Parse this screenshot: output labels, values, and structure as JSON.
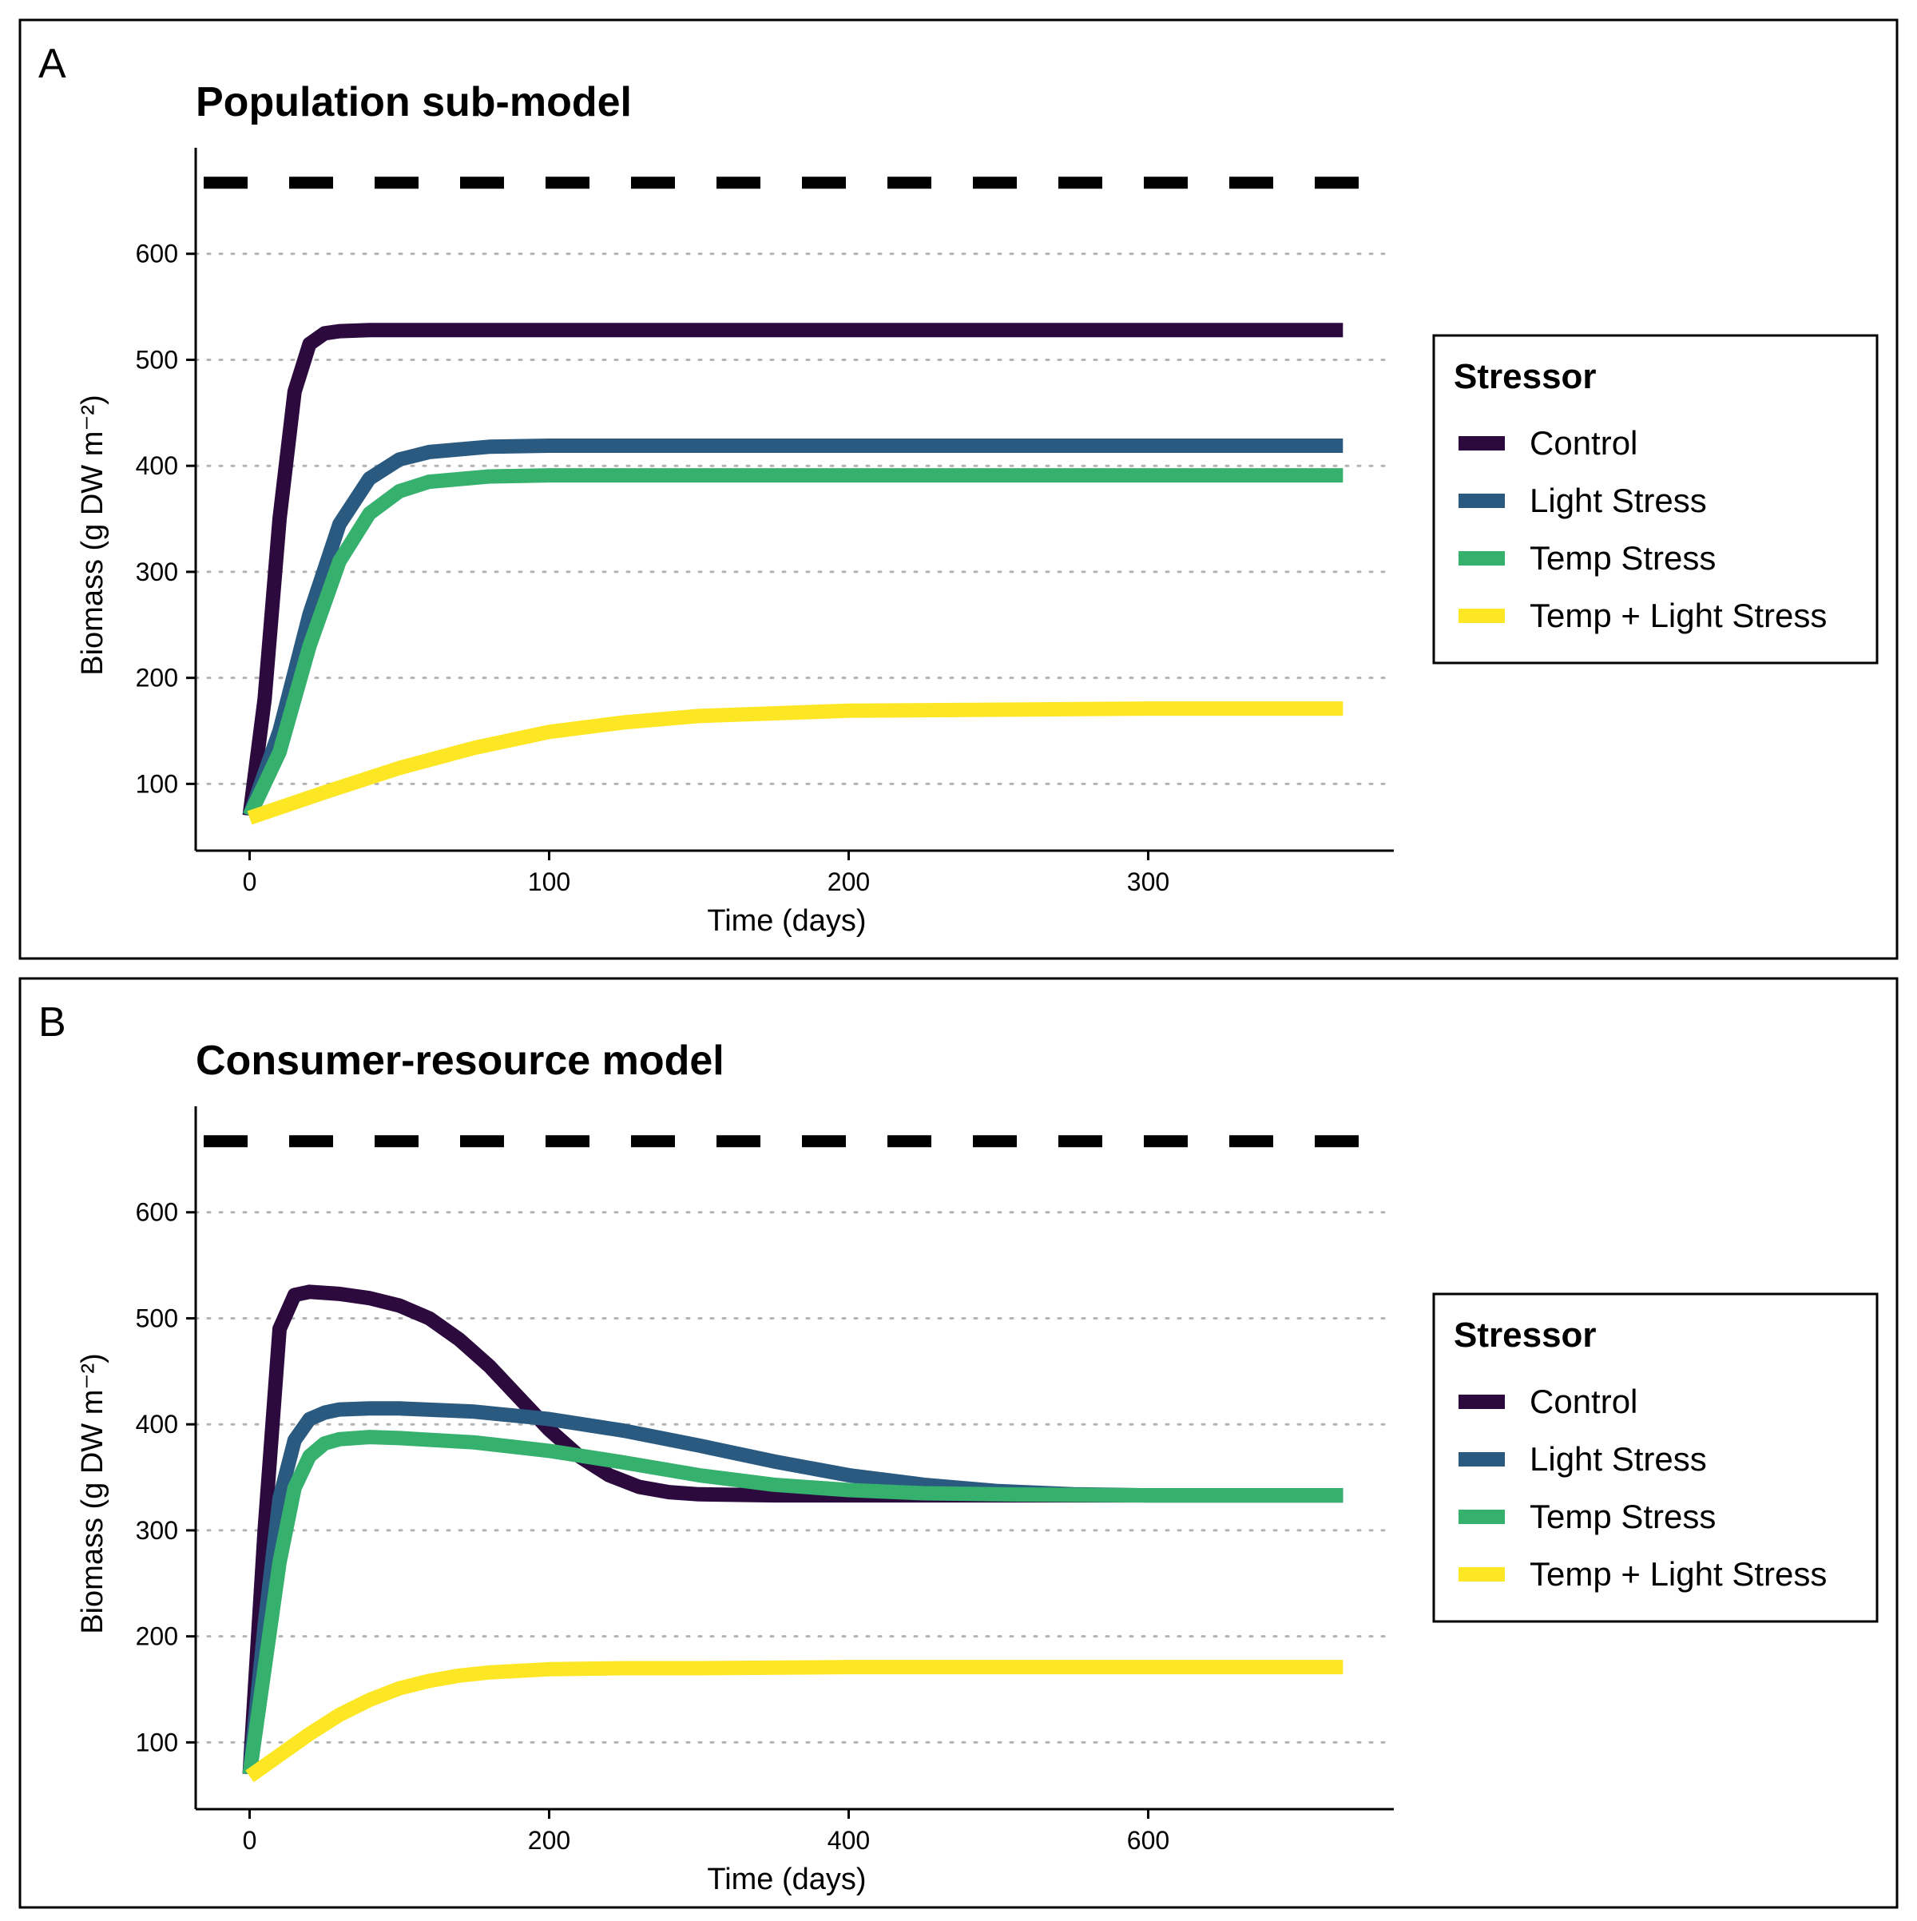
{
  "figure": {
    "panels": [
      {
        "letter": "A"
      },
      {
        "letter": "B"
      }
    ]
  },
  "colors": {
    "control": "#2d0a3e",
    "light": "#2b5a80",
    "temp": "#35b06d",
    "both": "#fde725",
    "dashed": "#000000",
    "grid": "#b3b3b3"
  },
  "chart_data": [
    {
      "type": "line",
      "title": "Population sub-model",
      "xlabel": "Time (days)",
      "ylabel": "Biomass (g DW m⁻²)",
      "xlim": [
        -18,
        382
      ],
      "ylim": [
        37,
        700
      ],
      "xticks": [
        0,
        100,
        200,
        300
      ],
      "yticks": [
        100,
        200,
        300,
        400,
        500,
        600
      ],
      "grid": "horizontal dotted",
      "reference_line": {
        "y": 667,
        "style": "dashed"
      },
      "legend": {
        "title": "Stressor",
        "position": "right"
      },
      "series": [
        {
          "name": "Control",
          "color_key": "control",
          "x": [
            0,
            5,
            10,
            15,
            20,
            25,
            30,
            40,
            60,
            100,
            200,
            300,
            365
          ],
          "y": [
            70,
            180,
            350,
            470,
            515,
            525,
            527,
            528,
            528,
            528,
            528,
            528,
            528
          ]
        },
        {
          "name": "Light Stress",
          "color_key": "light",
          "x": [
            0,
            10,
            20,
            30,
            40,
            50,
            60,
            80,
            100,
            150,
            200,
            300,
            365
          ],
          "y": [
            70,
            150,
            260,
            345,
            388,
            406,
            413,
            418,
            419,
            419,
            419,
            419,
            419
          ]
        },
        {
          "name": "Temp Stress",
          "color_key": "temp",
          "x": [
            0,
            10,
            20,
            30,
            40,
            50,
            60,
            80,
            100,
            150,
            200,
            300,
            365
          ],
          "y": [
            70,
            130,
            230,
            310,
            355,
            376,
            385,
            390,
            391,
            391,
            391,
            391,
            391
          ]
        },
        {
          "name": "Temp + Light Stress",
          "color_key": "both",
          "x": [
            0,
            25,
            50,
            75,
            100,
            125,
            150,
            200,
            250,
            300,
            365
          ],
          "y": [
            68,
            92,
            115,
            134,
            149,
            158,
            164,
            169,
            170,
            171,
            171
          ]
        }
      ]
    },
    {
      "type": "line",
      "title": "Consumer-resource model",
      "xlabel": "Time (days)",
      "ylabel": "Biomass (g DW m⁻²)",
      "xlim": [
        -36,
        764
      ],
      "ylim": [
        37,
        700
      ],
      "xticks": [
        0,
        200,
        400,
        600
      ],
      "yticks": [
        100,
        200,
        300,
        400,
        500,
        600
      ],
      "grid": "horizontal dotted",
      "reference_line": {
        "y": 667,
        "style": "dashed"
      },
      "legend": {
        "title": "Stressor",
        "position": "right"
      },
      "series": [
        {
          "name": "Control",
          "color_key": "control",
          "x": [
            0,
            10,
            20,
            30,
            40,
            60,
            80,
            100,
            120,
            140,
            160,
            180,
            200,
            220,
            240,
            260,
            280,
            300,
            350,
            400,
            500,
            600,
            730
          ],
          "y": [
            70,
            300,
            490,
            522,
            525,
            523,
            519,
            512,
            500,
            480,
            455,
            425,
            395,
            370,
            352,
            341,
            336,
            334,
            333,
            333,
            333,
            333,
            333
          ]
        },
        {
          "name": "Light Stress",
          "color_key": "light",
          "x": [
            0,
            10,
            20,
            30,
            40,
            50,
            60,
            80,
            100,
            150,
            200,
            250,
            300,
            350,
            400,
            450,
            500,
            550,
            600,
            730
          ],
          "y": [
            70,
            210,
            330,
            385,
            405,
            411,
            414,
            415,
            415,
            412,
            405,
            394,
            380,
            365,
            352,
            343,
            337,
            334,
            333,
            333
          ]
        },
        {
          "name": "Temp Stress",
          "color_key": "temp",
          "x": [
            0,
            10,
            20,
            30,
            40,
            50,
            60,
            80,
            100,
            150,
            200,
            250,
            300,
            350,
            400,
            450,
            500,
            600,
            730
          ],
          "y": [
            70,
            170,
            270,
            340,
            370,
            382,
            386,
            388,
            387,
            383,
            375,
            364,
            352,
            343,
            338,
            335,
            334,
            333,
            333
          ]
        },
        {
          "name": "Temp + Light Stress",
          "color_key": "both",
          "x": [
            0,
            20,
            40,
            60,
            80,
            100,
            120,
            140,
            160,
            200,
            250,
            300,
            400,
            500,
            600,
            730
          ],
          "y": [
            68,
            88,
            108,
            126,
            140,
            151,
            158,
            163,
            166,
            169,
            170,
            170,
            171,
            171,
            171,
            171
          ]
        }
      ]
    }
  ]
}
